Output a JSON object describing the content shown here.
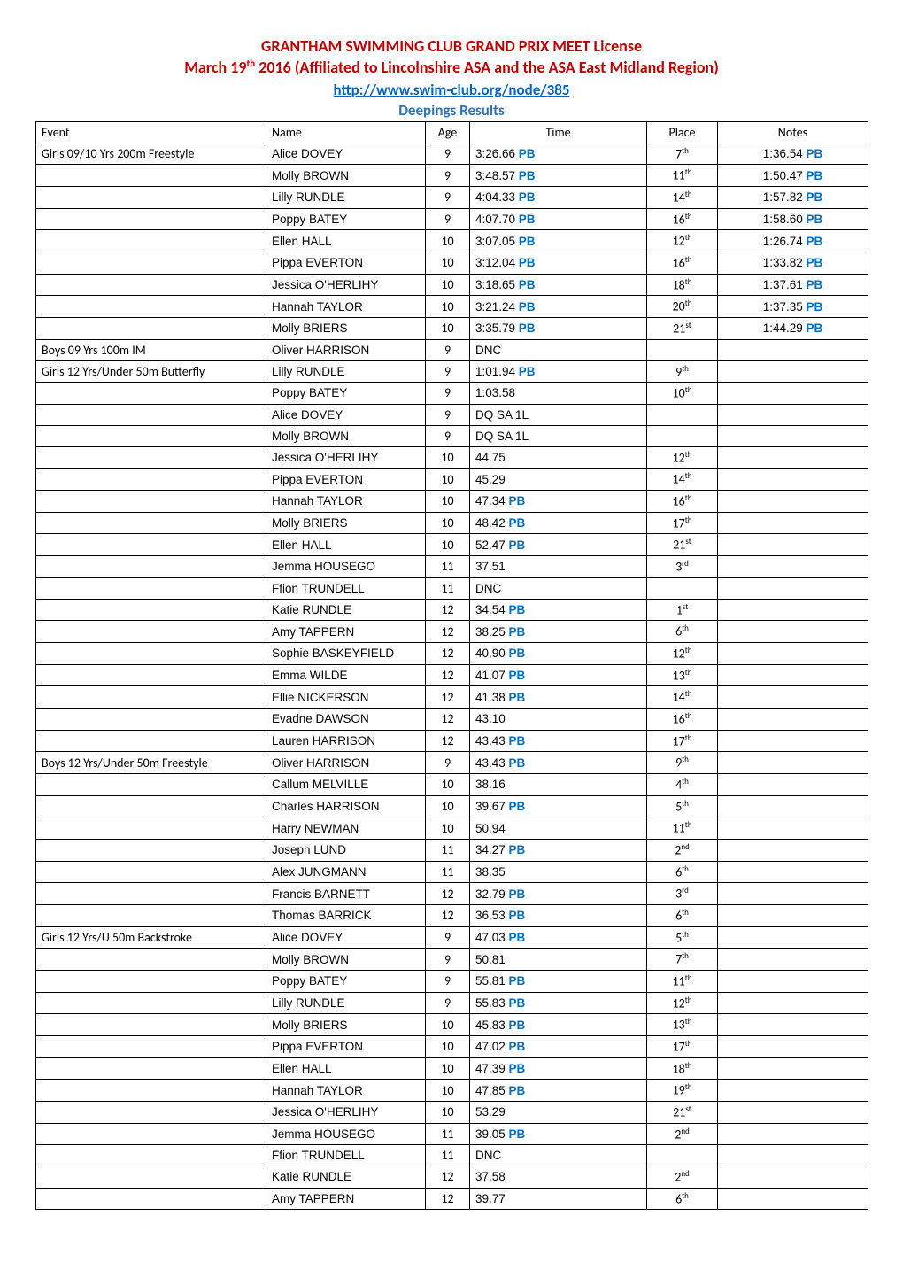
{
  "header": {
    "title1": "GRANTHAM SWIMMING CLUB GRAND PRIX MEET License",
    "title2_pre": "March 19",
    "title2_sup": "th",
    "title2_post": " 2016 (Affiliated to Lincolnshire ASA and the ASA East Midland Region)",
    "link_text": "http://www.swim-club.org/node/385",
    "subtitle": "Deepings Results"
  },
  "columns": {
    "event": "Event",
    "name": "Name",
    "age": "Age",
    "time": "Time",
    "place": "Place",
    "notes": "Notes"
  },
  "rows": [
    {
      "event": "Girls 09/10 Yrs 200m Freestyle",
      "name": "Alice DOVEY",
      "age": "9",
      "time": "3:26.66",
      "time_pb": true,
      "place_n": "7",
      "place_ord": "th",
      "notes": "1:36.54",
      "notes_pb": true
    },
    {
      "event": "",
      "name": "Molly BROWN",
      "age": "9",
      "time": "3:48.57",
      "time_pb": true,
      "place_n": "11",
      "place_ord": "th",
      "notes": "1:50.47",
      "notes_pb": true
    },
    {
      "event": "",
      "name": "Lilly RUNDLE",
      "age": "9",
      "time": "4:04.33",
      "time_pb": true,
      "place_n": "14",
      "place_ord": "th",
      "notes": "1:57.82",
      "notes_pb": true
    },
    {
      "event": "",
      "name": "Poppy BATEY",
      "age": "9",
      "time": "4:07.70",
      "time_pb": true,
      "place_n": "16",
      "place_ord": "th",
      "notes": "1:58.60",
      "notes_pb": true
    },
    {
      "event": "",
      "name": "Ellen HALL",
      "age": "10",
      "time": "3:07.05",
      "time_pb": true,
      "place_n": "12",
      "place_ord": "th",
      "notes": "1:26.74",
      "notes_pb": true
    },
    {
      "event": "",
      "name": "Pippa EVERTON",
      "age": "10",
      "time": "3:12.04",
      "time_pb": true,
      "place_n": "16",
      "place_ord": "th",
      "notes": "1:33.82",
      "notes_pb": true
    },
    {
      "event": "",
      "name": "Jessica O'HERLIHY",
      "age": "10",
      "time": "3:18.65",
      "time_pb": true,
      "place_n": "18",
      "place_ord": "th",
      "notes": "1:37.61",
      "notes_pb": true
    },
    {
      "event": "",
      "name": "Hannah TAYLOR",
      "age": "10",
      "time": "3:21.24",
      "time_pb": true,
      "place_n": "20",
      "place_ord": "th",
      "notes": "1:37.35",
      "notes_pb": true
    },
    {
      "event": "",
      "name": "Molly BRIERS",
      "age": "10",
      "time": "3:35.79",
      "time_pb": true,
      "place_n": "21",
      "place_ord": "st",
      "notes": "1:44.29",
      "notes_pb": true
    },
    {
      "event": "Boys 09 Yrs 100m IM",
      "name": "Oliver HARRISON",
      "age": "9",
      "time": "DNC",
      "time_pb": false,
      "place_n": "",
      "place_ord": "",
      "notes": "",
      "notes_pb": false
    },
    {
      "event": "Girls 12 Yrs/Under 50m Butterfly",
      "name": "Lilly RUNDLE",
      "age": "9",
      "time": "1:01.94",
      "time_pb": true,
      "place_n": "9",
      "place_ord": "th",
      "notes": "",
      "notes_pb": false
    },
    {
      "event": "",
      "name": "Poppy BATEY",
      "age": "9",
      "time": "1:03.58",
      "time_pb": false,
      "place_n": "10",
      "place_ord": "th",
      "notes": "",
      "notes_pb": false
    },
    {
      "event": "",
      "name": "Alice DOVEY",
      "age": "9",
      "time": "DQ SA 1L",
      "time_pb": false,
      "place_n": "",
      "place_ord": "",
      "notes": "",
      "notes_pb": false
    },
    {
      "event": "",
      "name": "Molly BROWN",
      "age": "9",
      "time": "DQ SA 1L",
      "time_pb": false,
      "place_n": "",
      "place_ord": "",
      "notes": "",
      "notes_pb": false
    },
    {
      "event": "",
      "name": "Jessica O'HERLIHY",
      "age": "10",
      "time": "44.75",
      "time_pb": false,
      "place_n": "12",
      "place_ord": "th",
      "notes": "",
      "notes_pb": false
    },
    {
      "event": "",
      "name": "Pippa EVERTON",
      "age": "10",
      "time": "45.29",
      "time_pb": false,
      "place_n": "14",
      "place_ord": "th",
      "notes": "",
      "notes_pb": false
    },
    {
      "event": "",
      "name": "Hannah TAYLOR",
      "age": "10",
      "time": "47.34",
      "time_pb": true,
      "place_n": "16",
      "place_ord": "th",
      "notes": "",
      "notes_pb": false
    },
    {
      "event": "",
      "name": "Molly BRIERS",
      "age": "10",
      "time": "48.42",
      "time_pb": true,
      "place_n": "17",
      "place_ord": "th",
      "notes": "",
      "notes_pb": false
    },
    {
      "event": "",
      "name": "Ellen HALL",
      "age": "10",
      "time": "52.47",
      "time_pb": true,
      "place_n": "21",
      "place_ord": "st",
      "notes": "",
      "notes_pb": false
    },
    {
      "event": "",
      "name": "Jemma HOUSEGO",
      "age": "11",
      "time": "37.51",
      "time_pb": false,
      "place_n": "3",
      "place_ord": "rd",
      "notes": "",
      "notes_pb": false
    },
    {
      "event": "",
      "name": "Ffion TRUNDELL",
      "age": "11",
      "time": "DNC",
      "time_pb": false,
      "place_n": "",
      "place_ord": "",
      "notes": "",
      "notes_pb": false
    },
    {
      "event": "",
      "name": "Katie RUNDLE",
      "age": "12",
      "time": "34.54",
      "time_pb": true,
      "place_n": "1",
      "place_ord": "st",
      "notes": "",
      "notes_pb": false
    },
    {
      "event": "",
      "name": "Amy TAPPERN",
      "age": "12",
      "time": "38.25",
      "time_pb": true,
      "place_n": "6",
      "place_ord": "th",
      "notes": "",
      "notes_pb": false
    },
    {
      "event": "",
      "name": "Sophie BASKEYFIELD",
      "age": "12",
      "time": "40.90",
      "time_pb": true,
      "place_n": "12",
      "place_ord": "th",
      "notes": "",
      "notes_pb": false
    },
    {
      "event": "",
      "name": "Emma WILDE",
      "age": "12",
      "time": "41.07",
      "time_pb": true,
      "place_n": "13",
      "place_ord": "th",
      "notes": "",
      "notes_pb": false
    },
    {
      "event": "",
      "name": "Ellie NICKERSON",
      "age": "12",
      "time": "41.38",
      "time_pb": true,
      "place_n": "14",
      "place_ord": "th",
      "notes": "",
      "notes_pb": false
    },
    {
      "event": "",
      "name": "Evadne DAWSON",
      "age": "12",
      "time": "43.10",
      "time_pb": false,
      "place_n": "16",
      "place_ord": "th",
      "notes": "",
      "notes_pb": false
    },
    {
      "event": "",
      "name": "Lauren HARRISON",
      "age": "12",
      "time": "43.43",
      "time_pb": true,
      "place_n": "17",
      "place_ord": "th",
      "notes": "",
      "notes_pb": false
    },
    {
      "event": "Boys 12 Yrs/Under 50m Freestyle",
      "name": "Oliver HARRISON",
      "age": "9",
      "time": "43.43",
      "time_pb": true,
      "place_n": "9",
      "place_ord": "th",
      "notes": "",
      "notes_pb": false
    },
    {
      "event": "",
      "name": "Callum MELVILLE",
      "age": "10",
      "time": "38.16",
      "time_pb": false,
      "place_n": "4",
      "place_ord": "th",
      "notes": "",
      "notes_pb": false
    },
    {
      "event": "",
      "name": "Charles HARRISON",
      "age": "10",
      "time": "39.67",
      "time_pb": true,
      "place_n": "5",
      "place_ord": "th",
      "notes": "",
      "notes_pb": false
    },
    {
      "event": "",
      "name": "Harry NEWMAN",
      "age": "10",
      "time": "50.94",
      "time_pb": false,
      "place_n": "11",
      "place_ord": "th",
      "notes": "",
      "notes_pb": false
    },
    {
      "event": "",
      "name": "Joseph LUND",
      "age": "11",
      "time": "34.27",
      "time_pb": true,
      "place_n": "2",
      "place_ord": "nd",
      "notes": "",
      "notes_pb": false
    },
    {
      "event": "",
      "name": "Alex JUNGMANN",
      "age": "11",
      "time": "38.35",
      "time_pb": false,
      "place_n": "6",
      "place_ord": "th",
      "notes": "",
      "notes_pb": false
    },
    {
      "event": "",
      "name": "Francis BARNETT",
      "age": "12",
      "time": "32.79",
      "time_pb": true,
      "place_n": "3",
      "place_ord": "rd",
      "notes": "",
      "notes_pb": false
    },
    {
      "event": "",
      "name": "Thomas BARRICK",
      "age": "12",
      "time": "36.53",
      "time_pb": true,
      "place_n": "6",
      "place_ord": "th",
      "notes": "",
      "notes_pb": false
    },
    {
      "event": "Girls 12 Yrs/U 50m Backstroke",
      "name": "Alice DOVEY",
      "age": "9",
      "time": "47.03",
      "time_pb": true,
      "place_n": "5",
      "place_ord": "th",
      "notes": "",
      "notes_pb": false
    },
    {
      "event": "",
      "name": "Molly BROWN",
      "age": "9",
      "time": "50.81",
      "time_pb": false,
      "place_n": "7",
      "place_ord": "th",
      "notes": "",
      "notes_pb": false
    },
    {
      "event": "",
      "name": "Poppy BATEY",
      "age": "9",
      "time": "55.81",
      "time_pb": true,
      "place_n": "11",
      "place_ord": "th",
      "notes": "",
      "notes_pb": false
    },
    {
      "event": "",
      "name": "Lilly RUNDLE",
      "age": "9",
      "time": "55.83",
      "time_pb": true,
      "place_n": "12",
      "place_ord": "th",
      "notes": "",
      "notes_pb": false
    },
    {
      "event": "",
      "name": "Molly BRIERS",
      "age": "10",
      "time": "45.83",
      "time_pb": true,
      "place_n": "13",
      "place_ord": "th",
      "notes": "",
      "notes_pb": false
    },
    {
      "event": "",
      "name": "Pippa EVERTON",
      "age": "10",
      "time": "47.02",
      "time_pb": true,
      "place_n": "17",
      "place_ord": "th",
      "notes": "",
      "notes_pb": false
    },
    {
      "event": "",
      "name": "Ellen HALL",
      "age": "10",
      "time": "47.39",
      "time_pb": true,
      "place_n": "18",
      "place_ord": "th",
      "notes": "",
      "notes_pb": false
    },
    {
      "event": "",
      "name": "Hannah TAYLOR",
      "age": "10",
      "time": "47.85",
      "time_pb": true,
      "place_n": "19",
      "place_ord": "th",
      "notes": "",
      "notes_pb": false
    },
    {
      "event": "",
      "name": "Jessica O'HERLIHY",
      "age": "10",
      "time": "53.29",
      "time_pb": false,
      "place_n": "21",
      "place_ord": "st",
      "notes": "",
      "notes_pb": false
    },
    {
      "event": "",
      "name": "Jemma HOUSEGO",
      "age": "11",
      "time": "39.05",
      "time_pb": true,
      "place_n": "2",
      "place_ord": "nd",
      "notes": "",
      "notes_pb": false
    },
    {
      "event": "",
      "name": "Ffion TRUNDELL",
      "age": "11",
      "time": "DNC",
      "time_pb": false,
      "place_n": "",
      "place_ord": "",
      "notes": "",
      "notes_pb": false
    },
    {
      "event": "",
      "name": "Katie RUNDLE",
      "age": "12",
      "time": "37.58",
      "time_pb": false,
      "place_n": "2",
      "place_ord": "nd",
      "notes": "",
      "notes_pb": false
    },
    {
      "event": "",
      "name": "Amy TAPPERN",
      "age": "12",
      "time": "39.77",
      "time_pb": false,
      "place_n": "6",
      "place_ord": "th",
      "notes": "",
      "notes_pb": false
    }
  ],
  "pb_label": "PB",
  "colors": {
    "title": "#c00000",
    "link": "#0563c1",
    "subtitle": "#2e74b5",
    "pb": "#0070c0",
    "border": "#000000",
    "background": "#ffffff"
  }
}
